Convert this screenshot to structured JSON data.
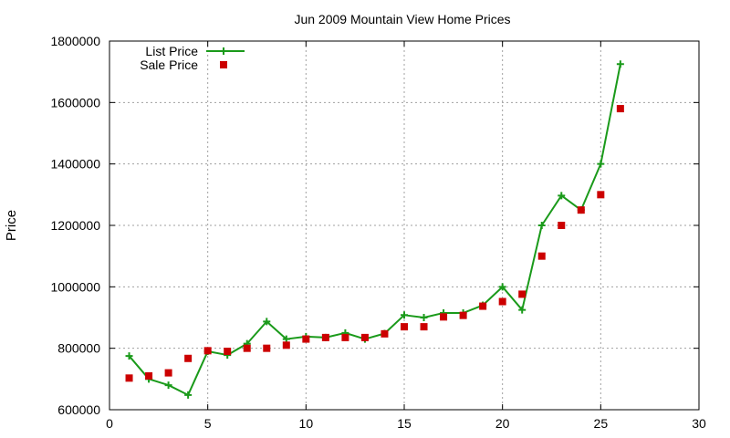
{
  "chart_data": {
    "type": "line",
    "title": "Jun 2009 Mountain View Home Prices",
    "xlabel": "",
    "ylabel": "Price",
    "xlim": [
      0,
      30
    ],
    "ylim": [
      600000,
      1800000
    ],
    "x_ticks": [
      "0",
      "5",
      "10",
      "15",
      "20",
      "25",
      "30"
    ],
    "y_ticks": [
      "600000",
      "800000",
      "1000000",
      "1200000",
      "1400000",
      "1600000",
      "1800000"
    ],
    "grid": true,
    "legend_position": "top-left",
    "x": [
      1,
      2,
      3,
      4,
      5,
      6,
      7,
      8,
      9,
      10,
      11,
      12,
      13,
      14,
      15,
      16,
      17,
      18,
      19,
      20,
      21,
      22,
      23,
      24,
      25,
      26
    ],
    "series": [
      {
        "name": "List Price",
        "style": "line-with-plus-markers",
        "color": "#1a9a1a",
        "values": [
          775000,
          700000,
          680000,
          648000,
          790000,
          778000,
          815000,
          887000,
          830000,
          838000,
          835000,
          850000,
          830000,
          848000,
          908000,
          900000,
          915000,
          915000,
          940000,
          1000000,
          925000,
          1200000,
          1297000,
          1250000,
          1400000,
          1725000
        ]
      },
      {
        "name": "Sale Price",
        "style": "square-markers",
        "color": "#cc0000",
        "values": [
          703000,
          710000,
          720000,
          767000,
          792000,
          790000,
          800000,
          800000,
          810000,
          830000,
          835000,
          835000,
          835000,
          847000,
          870000,
          870000,
          902000,
          907000,
          937000,
          952000,
          976000,
          1100000,
          1200000,
          1250000,
          1300000,
          1580000
        ]
      }
    ]
  }
}
